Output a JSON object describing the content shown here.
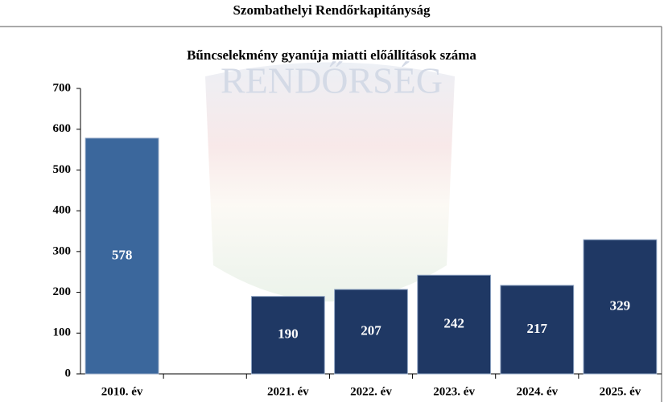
{
  "chart_data": {
    "type": "bar",
    "header": "Szombathelyi Rendőrkapitányság",
    "title": "Bűncselekmény gyanúja miatti előállítások száma",
    "watermark": "RENDŐRSÉG",
    "categories": [
      "2010. év",
      null,
      "2021. év",
      "2022. év",
      "2023. év",
      "2024. év",
      "2025. év"
    ],
    "values": [
      578,
      null,
      190,
      207,
      242,
      217,
      329
    ],
    "colors": [
      "#3b679c",
      "#1f3864",
      "#1f3864",
      "#1f3864",
      "#1f3864",
      "#1f3864",
      "#1f3864"
    ],
    "ylim": [
      0,
      700
    ],
    "yticks": [
      0,
      100,
      200,
      300,
      400,
      500,
      600,
      700
    ]
  }
}
